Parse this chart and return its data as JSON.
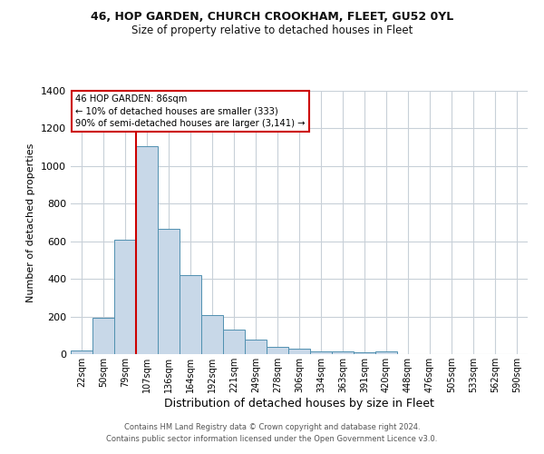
{
  "title1": "46, HOP GARDEN, CHURCH CROOKHAM, FLEET, GU52 0YL",
  "title2": "Size of property relative to detached houses in Fleet",
  "xlabel": "Distribution of detached houses by size in Fleet",
  "ylabel": "Number of detached properties",
  "bar_color": "#c8d8e8",
  "bar_edge_color": "#5090b0",
  "categories": [
    "22sqm",
    "50sqm",
    "79sqm",
    "107sqm",
    "136sqm",
    "164sqm",
    "192sqm",
    "221sqm",
    "249sqm",
    "278sqm",
    "306sqm",
    "334sqm",
    "363sqm",
    "391sqm",
    "420sqm",
    "448sqm",
    "476sqm",
    "505sqm",
    "533sqm",
    "562sqm",
    "590sqm"
  ],
  "values": [
    18,
    193,
    607,
    1107,
    667,
    422,
    210,
    128,
    75,
    37,
    30,
    14,
    14,
    8,
    13,
    0,
    0,
    0,
    0,
    0,
    0
  ],
  "ylim": [
    0,
    1400
  ],
  "yticks": [
    0,
    200,
    400,
    600,
    800,
    1000,
    1200,
    1400
  ],
  "property_bin_index": 2,
  "annotation_title": "46 HOP GARDEN: 86sqm",
  "annotation_line1": "← 10% of detached houses are smaller (333)",
  "annotation_line2": "90% of semi-detached houses are larger (3,141) →",
  "red_line_color": "#cc0000",
  "annotation_box_color": "#ffffff",
  "annotation_box_edge_color": "#cc0000",
  "footer1": "Contains HM Land Registry data © Crown copyright and database right 2024.",
  "footer2": "Contains public sector information licensed under the Open Government Licence v3.0.",
  "background_color": "#ffffff",
  "grid_color": "#c8d0d8"
}
